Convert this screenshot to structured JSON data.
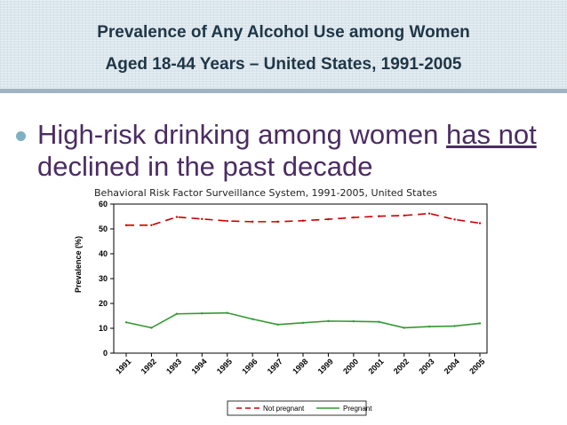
{
  "title": {
    "line1": "Prevalence of Any Alcohol Use among Women",
    "line2": "Aged 18-44 Years – United States, 1991-2005"
  },
  "bullet": {
    "pre": "High-risk drinking among women ",
    "underlined": "has not",
    "post": " declined in the past decade"
  },
  "colors": {
    "not_pregnant": "#cc0000",
    "pregnant": "#339933",
    "title_text": "#1f3646",
    "bullet_text": "#4b2c63"
  },
  "chart_data": {
    "type": "line",
    "subtitle": "Behavioral Risk Factor Surveillance System, 1991-2005, United States",
    "ylabel": "Prevalence (%)",
    "xlabel": "",
    "ylim": [
      0,
      60
    ],
    "yticks": [
      0,
      10,
      20,
      30,
      40,
      50,
      60
    ],
    "categories": [
      "1991",
      "1992",
      "1993",
      "1994",
      "1995",
      "1996",
      "1997",
      "1998",
      "1999",
      "2000",
      "2001",
      "2002",
      "2003",
      "2004",
      "2005"
    ],
    "legend_position": "bottom",
    "series": [
      {
        "name": "Not pregnant",
        "style": "dashed",
        "values": [
          51.5,
          51.5,
          54.8,
          54.0,
          53.2,
          52.9,
          52.9,
          53.3,
          53.9,
          54.6,
          55.1,
          55.4,
          56.2,
          53.8,
          52.3
        ]
      },
      {
        "name": "Pregnant",
        "style": "solid",
        "values": [
          12.4,
          10.2,
          15.8,
          16.0,
          16.2,
          13.7,
          11.5,
          12.2,
          12.9,
          12.8,
          12.6,
          10.2,
          10.7,
          10.9,
          12.0
        ]
      }
    ]
  }
}
